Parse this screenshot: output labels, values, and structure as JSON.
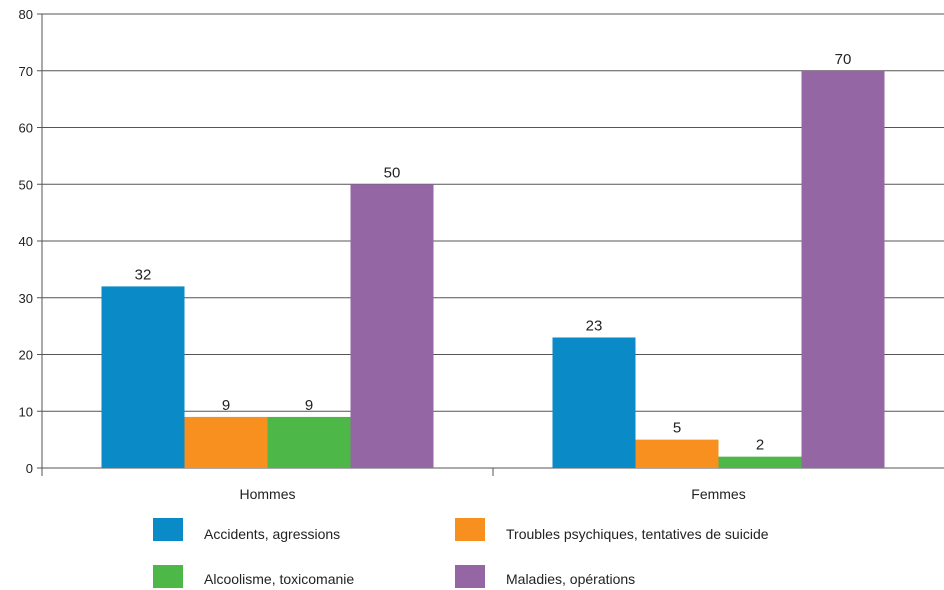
{
  "chart_data": {
    "type": "bar",
    "categories": [
      "Hommes",
      "Femmes"
    ],
    "series": [
      {
        "name": "Accidents, agressions",
        "values": [
          32,
          23
        ],
        "color": "#0a8ac6"
      },
      {
        "name": "Troubles psychiques, tentatives de suicide",
        "values": [
          9,
          5
        ],
        "color": "#f7901e"
      },
      {
        "name": "Alcoolisme, toxicomanie",
        "values": [
          9,
          2
        ],
        "color": "#4db848"
      },
      {
        "name": "Maladies, opérations",
        "values": [
          50,
          70
        ],
        "color": "#9566a4"
      }
    ],
    "ylim": [
      0,
      80
    ],
    "yticks": [
      0,
      10,
      20,
      30,
      40,
      50,
      60,
      70,
      80
    ],
    "grid": true,
    "legend_position": "bottom",
    "title": "",
    "xlabel": "",
    "ylabel": ""
  }
}
